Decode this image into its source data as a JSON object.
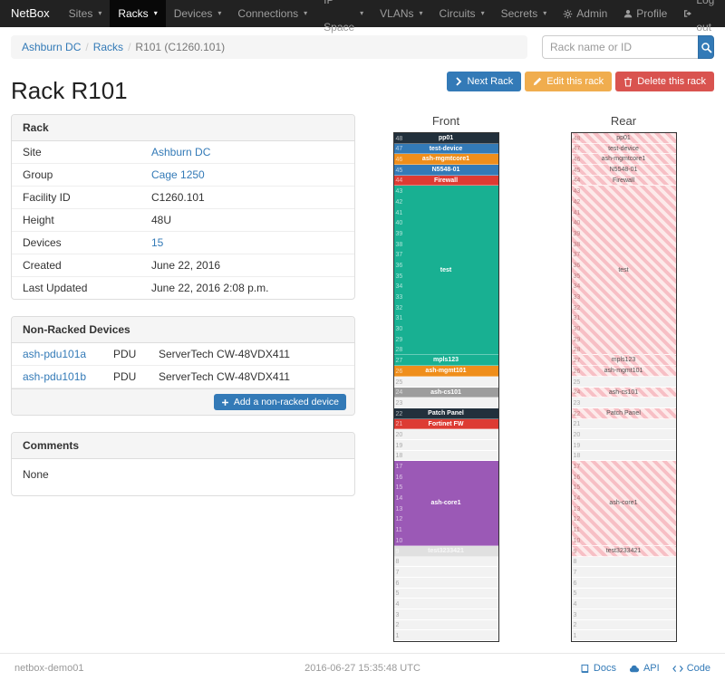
{
  "navbar": {
    "brand": "NetBox",
    "items": [
      {
        "label": "Sites"
      },
      {
        "label": "Racks",
        "active": true
      },
      {
        "label": "Devices"
      },
      {
        "label": "Connections"
      },
      {
        "label": "IP Space"
      },
      {
        "label": "VLANs"
      },
      {
        "label": "Circuits"
      },
      {
        "label": "Secrets"
      }
    ],
    "right": [
      {
        "label": "Admin",
        "icon": "gear-icon"
      },
      {
        "label": "Profile",
        "icon": "user-icon"
      },
      {
        "label": "Log out",
        "icon": "logout-icon"
      }
    ]
  },
  "breadcrumb": {
    "items": [
      {
        "label": "Ashburn DC",
        "link": true
      },
      {
        "label": "Racks",
        "link": true
      },
      {
        "label": "R101 (C1260.101)",
        "link": false
      }
    ]
  },
  "search": {
    "placeholder": "Rack name or ID"
  },
  "actions": {
    "next": "Next Rack",
    "edit": "Edit this rack",
    "delete": "Delete this rack"
  },
  "page_title": "Rack R101",
  "rack_panel": {
    "title": "Rack",
    "rows": [
      {
        "label": "Site",
        "value": "Ashburn DC",
        "link": true
      },
      {
        "label": "Group",
        "value": "Cage 1250",
        "link": true
      },
      {
        "label": "Facility ID",
        "value": "C1260.101"
      },
      {
        "label": "Height",
        "value": "48U"
      },
      {
        "label": "Devices",
        "value": "15",
        "link": true
      },
      {
        "label": "Created",
        "value": "June 22, 2016"
      },
      {
        "label": "Last Updated",
        "value": "June 22, 2016 2:08 p.m."
      }
    ]
  },
  "nonracked_panel": {
    "title": "Non-Racked Devices",
    "rows": [
      {
        "name": "ash-pdu101a",
        "type": "PDU",
        "model": "ServerTech CW-48VDX411"
      },
      {
        "name": "ash-pdu101b",
        "type": "PDU",
        "model": "ServerTech CW-48VDX411"
      }
    ],
    "add_button": "Add a non-racked device"
  },
  "comments_panel": {
    "title": "Comments",
    "body": "None"
  },
  "rack_elevations": {
    "units": 48,
    "racks": [
      {
        "title": "Front",
        "face": "front",
        "segments": [
          {
            "u": 48,
            "span": 1,
            "label": "pp01",
            "bg": "#22303c"
          },
          {
            "u": 47,
            "span": 1,
            "label": "test-device",
            "bg": "#337ab7"
          },
          {
            "u": 46,
            "span": 1,
            "label": "ash-mgmtcore1",
            "bg": "#ef8e1b"
          },
          {
            "u": 45,
            "span": 1,
            "label": "N5548-01",
            "bg": "#337ab7"
          },
          {
            "u": 44,
            "span": 1,
            "label": "Firewall",
            "bg": "#dd3b33"
          },
          {
            "u": 43,
            "span": 16,
            "label": "test",
            "bg": "#18b092"
          },
          {
            "u": 27,
            "span": 1,
            "label": "mpls123",
            "bg": "#18b092"
          },
          {
            "u": 26,
            "span": 1,
            "label": "ash-mgmt101",
            "bg": "#ef8e1b"
          },
          {
            "u": 25,
            "span": 1,
            "empty": true
          },
          {
            "u": 24,
            "span": 1,
            "label": "ash-cs101",
            "bg": "#9d9d9d"
          },
          {
            "u": 23,
            "span": 1,
            "empty": true
          },
          {
            "u": 22,
            "span": 1,
            "label": "Patch Panel",
            "bg": "#22303c"
          },
          {
            "u": 21,
            "span": 1,
            "label": "Fortinet FW",
            "bg": "#dd3b33"
          },
          {
            "u": 20,
            "span": 3,
            "empty": true
          },
          {
            "u": 17,
            "span": 8,
            "label": "ash-core1",
            "bg": "#9b59b6"
          },
          {
            "u": 9,
            "span": 1,
            "label": "test3233421",
            "bg": "#e0e0e0",
            "fg": "#f7f7f7"
          },
          {
            "u": 8,
            "span": 8,
            "empty": true
          }
        ]
      },
      {
        "title": "Rear",
        "face": "rear",
        "segments": [
          {
            "u": 48,
            "span": 1,
            "label": "pp01",
            "striped": true
          },
          {
            "u": 47,
            "span": 1,
            "label": "test-device",
            "striped": true
          },
          {
            "u": 46,
            "span": 1,
            "label": "ash-mgmtcore1",
            "striped": true
          },
          {
            "u": 45,
            "span": 1,
            "label": "N5548-01",
            "striped": true
          },
          {
            "u": 44,
            "span": 1,
            "label": "Firewall",
            "striped": true
          },
          {
            "u": 43,
            "span": 16,
            "label": "test",
            "striped": true
          },
          {
            "u": 27,
            "span": 1,
            "label": "mpls123",
            "striped": true
          },
          {
            "u": 26,
            "span": 1,
            "label": "ash-mgmt101",
            "striped": true
          },
          {
            "u": 25,
            "span": 1,
            "empty": true
          },
          {
            "u": 24,
            "span": 1,
            "label": "ash-cs101",
            "striped": true
          },
          {
            "u": 23,
            "span": 1,
            "empty": true
          },
          {
            "u": 22,
            "span": 1,
            "label": "Patch Panel",
            "striped": true
          },
          {
            "u": 21,
            "span": 4,
            "empty": true
          },
          {
            "u": 17,
            "span": 8,
            "label": "ash-core1",
            "striped": true
          },
          {
            "u": 9,
            "span": 1,
            "label": "test3233421",
            "striped": true
          },
          {
            "u": 8,
            "span": 8,
            "empty": true
          }
        ]
      }
    ]
  },
  "footer": {
    "hostname": "netbox-demo01",
    "timestamp": "2016-06-27 15:35:48 UTC",
    "links": [
      {
        "label": "Docs",
        "icon": "book-icon"
      },
      {
        "label": "API",
        "icon": "cloud-icon"
      },
      {
        "label": "Code",
        "icon": "code-icon"
      }
    ]
  },
  "icons": {
    "gear-icon": "⚙",
    "user-icon": "👤",
    "logout-icon": "⇥",
    "caret-down-icon": "▾",
    "search-icon": "🔍",
    "chevron-right-icon": "❯",
    "pencil-icon": "✎",
    "trash-icon": "🗑",
    "plus-icon": "+",
    "book-icon": "📖",
    "cloud-icon": "☁",
    "code-icon": "</>"
  },
  "colors": {
    "primary": "#337ab7",
    "warning": "#f0ad4e",
    "danger": "#d9534f",
    "navbar_bg": "#222222",
    "panel_heading_bg": "#f5f5f5",
    "rear_stripe_dark": "#f7bfc5",
    "rear_stripe_light": "#fdeaea",
    "empty_unit": "#f2f2f2"
  }
}
